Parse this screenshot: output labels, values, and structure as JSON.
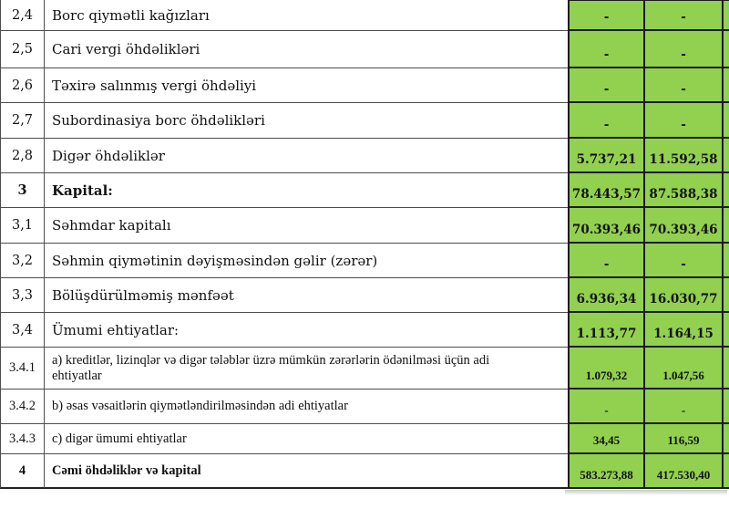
{
  "colors": {
    "cell_green": "#92d050",
    "grid_gray": "#4d4d4d",
    "grid_dark": "#1c1c1c"
  },
  "table": {
    "rows": [
      {
        "num": "2,4",
        "label": "Borc qiymətli kağızları",
        "v1": "-",
        "v2": "-",
        "bold": false,
        "font": "antiqua"
      },
      {
        "num": "2,5",
        "label": "Cari vergi öhdəlikləri",
        "v1": "-",
        "v2": "-",
        "bold": false,
        "font": "antiqua"
      },
      {
        "num": "2,6",
        "label": "Təxirə salınmış vergi öhdəliyi",
        "v1": "-",
        "v2": "-",
        "bold": false,
        "font": "antiqua"
      },
      {
        "num": "2,7",
        "label": "Subordinasiya borc öhdəlikləri",
        "v1": "-",
        "v2": "-",
        "bold": false,
        "font": "antiqua"
      },
      {
        "num": "2,8",
        "label": "Digər öhdəliklər",
        "v1": "5.737,21",
        "v2": "11.592,58",
        "bold": false,
        "font": "antiqua"
      },
      {
        "num": "3",
        "label": "Kapital:",
        "v1": "78.443,57",
        "v2": "87.588,38",
        "bold": true,
        "font": "antiqua"
      },
      {
        "num": "3,1",
        "label": "Səhmdar kapitalı",
        "v1": "70.393,46",
        "v2": "70.393,46",
        "bold": false,
        "font": "antiqua"
      },
      {
        "num": "3,2",
        "label": "Səhmin qiymətinin dəyişməsindən gəlir (zərər)",
        "v1": "-",
        "v2": "-",
        "bold": false,
        "font": "antiqua"
      },
      {
        "num": "3,3",
        "label": "Bölüşdürülməmiş mənfəət",
        "v1": "6.936,34",
        "v2": "16.030,77",
        "bold": false,
        "font": "antiqua"
      },
      {
        "num": "3,4",
        "label": "Ümumi ehtiyatlar:",
        "v1": "1.113,77",
        "v2": "1.164,15",
        "bold": false,
        "font": "antiqua"
      },
      {
        "num": "3.4.1",
        "label": "a) kreditlər, lizinqlər və digər tələblər üzrə mümkün zərərlərin ödənilməsi üçün adi\nehtiyatlar",
        "v1": "1.079,32",
        "v2": "1.047,56",
        "bold": false,
        "font": "times"
      },
      {
        "num": "3.4.2",
        "label": "b) əsas vəsaitlərin qiymətləndirilməsindən adi ehtiyatlar",
        "v1": "-",
        "v2": "-",
        "bold": false,
        "font": "times"
      },
      {
        "num": "3.4.3",
        "label": "c) digər ümumi ehtiyatlar",
        "v1": "34,45",
        "v2": "116,59",
        "bold": false,
        "font": "times"
      },
      {
        "num": "4",
        "label": "Cəmi öhdəliklər və kapital",
        "v1": "583.273,88",
        "v2": "417.530,40",
        "bold": true,
        "font": "times"
      }
    ]
  }
}
